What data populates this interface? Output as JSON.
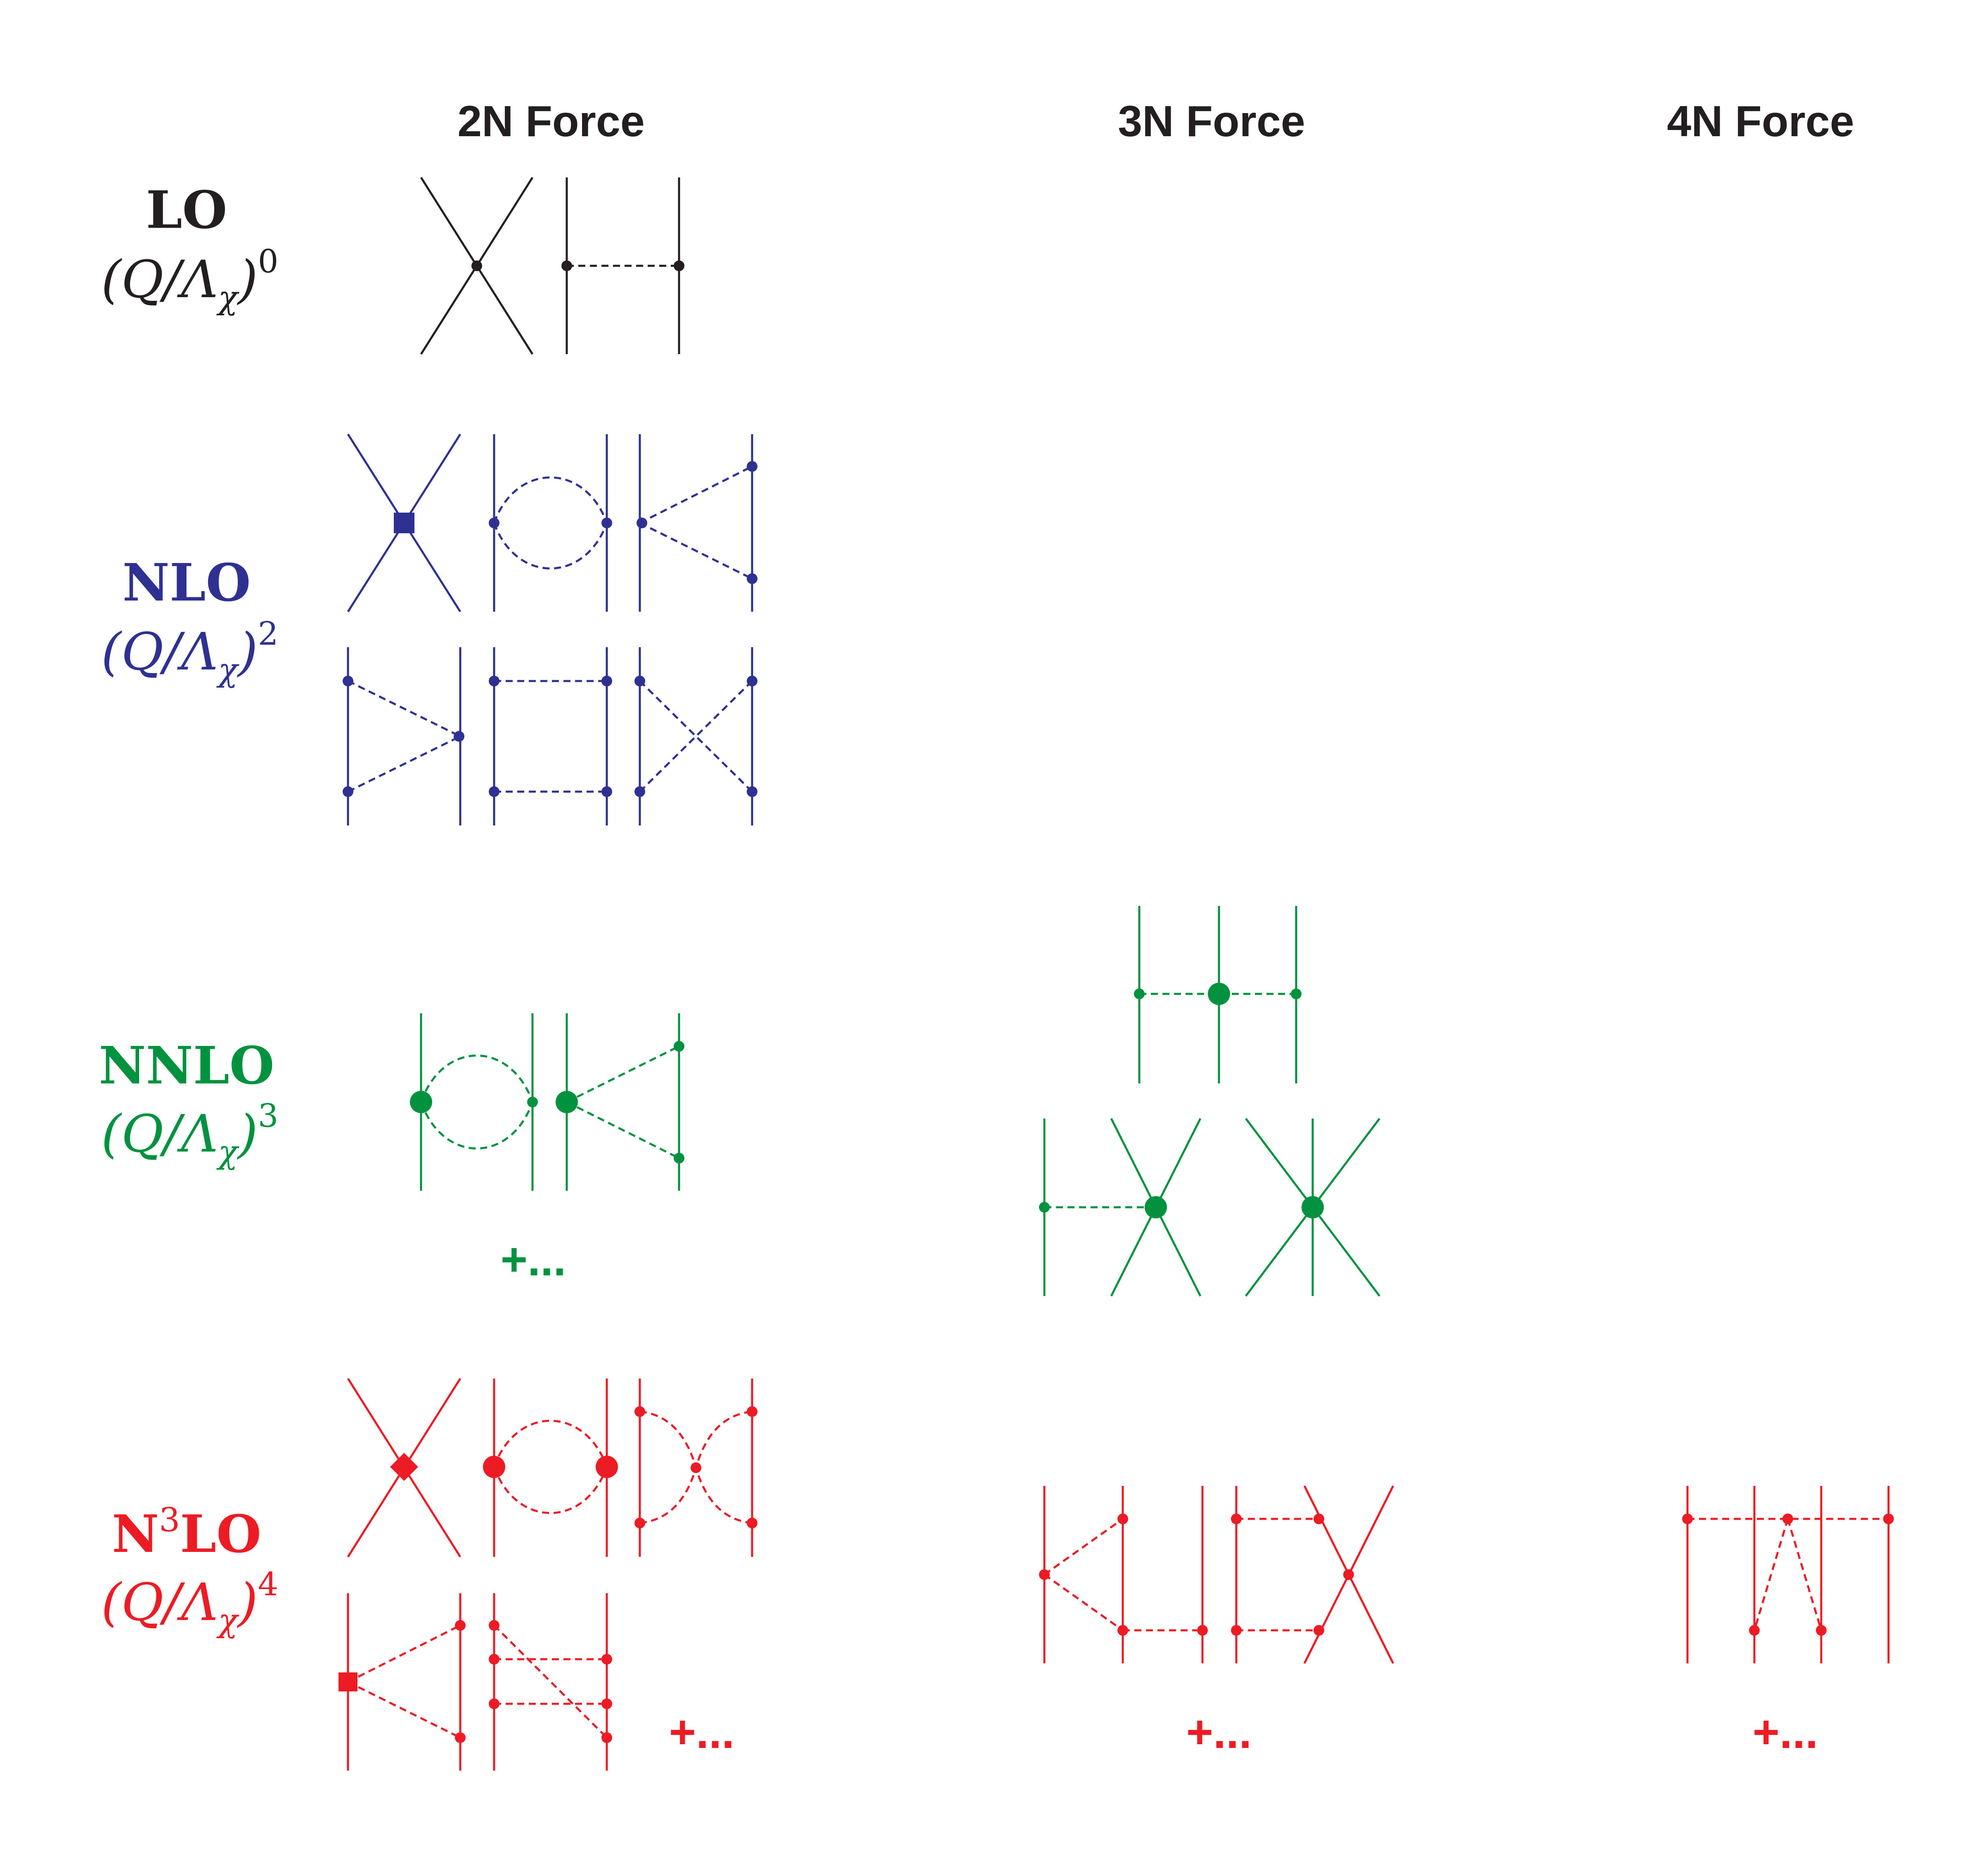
{
  "headers": {
    "two_n": "2N Force",
    "three_n": "3N Force",
    "four_n": "4N Force"
  },
  "rows": {
    "lo": {
      "label": "LO",
      "power_sup": "0",
      "color": "#231f20"
    },
    "nlo": {
      "label": "NLO",
      "power_sup": "2",
      "color": "#2e3192"
    },
    "nnlo": {
      "label": "NNLO",
      "power_sup": "3",
      "color": "#00923f"
    },
    "n3lo": {
      "label_pre": "N",
      "label_sup": "3",
      "label_post": "LO",
      "power_sup": "4",
      "color": "#ed1c24"
    }
  },
  "power_text": {
    "open": "(Q/Λ",
    "sub": "χ",
    "close": ")"
  },
  "more_terms": "+..."
}
